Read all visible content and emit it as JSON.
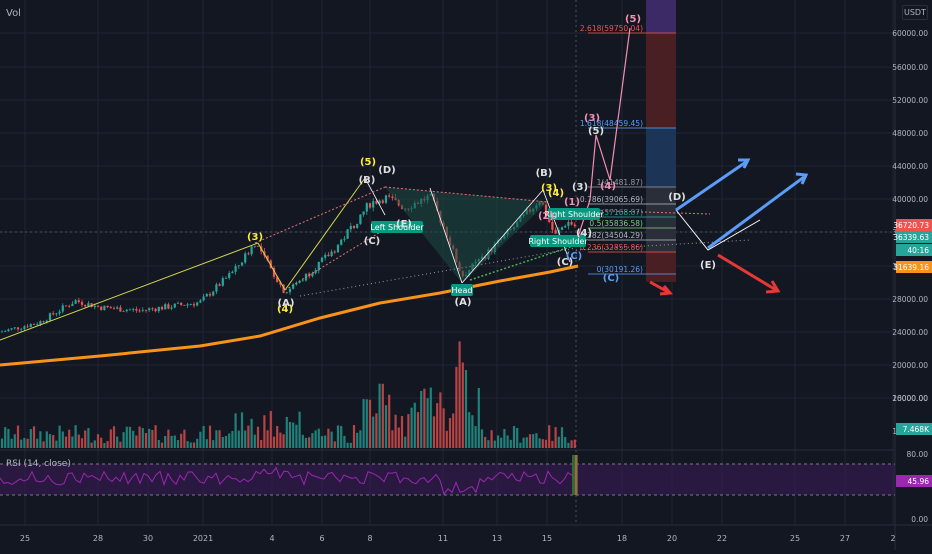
{
  "header": {
    "vol_label": "Vol",
    "currency_label": "USDT"
  },
  "colors": {
    "background": "#131722",
    "grid": "#1f2433",
    "text": "#b2b5be",
    "up": "#26a69a",
    "down": "#ef5350",
    "ma": "#f7931a",
    "rsi_line": "#9c27b0",
    "rsi_band": "#3c1a5a",
    "wave_yellow": "#ffeb3b",
    "wave_pink": "#f48fb1",
    "wave_blue": "#5b9cf6",
    "target_red": "#e53935",
    "label_green": "#089981"
  },
  "chart_data": {
    "type": "candlestick",
    "title": "",
    "price_axis": {
      "scale": "log",
      "range": [
        20000,
        64000
      ],
      "ticks": [
        60000,
        56000,
        52000,
        48000,
        44000,
        40000,
        36000,
        32000,
        28000,
        24000,
        20000,
        16000
      ]
    },
    "volume_axis_ticks": [
      20000.0,
      16000.0
    ],
    "time_axis_ticks": [
      "25",
      "28",
      "30",
      "2021",
      "4",
      "6",
      "8",
      "11",
      "13",
      "15",
      "18",
      "20",
      "22",
      "25",
      "27",
      "2"
    ],
    "price_tick_labels": [
      "60000.00",
      "56000.00",
      "52000.00",
      "48000.00",
      "44000.00",
      "40000.00",
      "36000.00",
      "32000.00",
      "28000.00",
      "24000.00",
      "20000.00",
      "16000.00"
    ],
    "price_badges": [
      {
        "label": "36720.73",
        "color": "#ef5350"
      },
      {
        "label": "36339.63",
        "color": "#26a69a"
      },
      {
        "label": "40:16",
        "color": "#26a69a"
      },
      {
        "label": "31639.16",
        "color": "#f7931a"
      }
    ],
    "volume_badge": {
      "label": "7.468K",
      "color": "#26a69a"
    },
    "rsi": {
      "label": "RSI (14, close)",
      "ticks": [
        "80.00",
        "0.00"
      ],
      "value_badge": "45.96",
      "upper": 70,
      "lower": 30
    },
    "fib_levels": [
      {
        "label": "2.618(59750.04)",
        "color": "#ef5350"
      },
      {
        "label": "1.618(48459.45)",
        "color": "#5b9cf6"
      },
      {
        "label": "1(41481.87)",
        "color": "#9598a1"
      },
      {
        "label": "0.786(39065.69)",
        "color": "#b2b5be"
      },
      {
        "label": "0.618(37168.87)",
        "color": "#26a69a"
      },
      {
        "label": "0.5(35836.58)",
        "color": "#81c784"
      },
      {
        "label": "0.382(34504.29)",
        "color": "#b2b5be"
      },
      {
        "label": "0.236(32855.86)",
        "color": "#ef5350"
      },
      {
        "label": "0(30191.26)",
        "color": "#5b9cf6"
      }
    ],
    "pattern_labels": {
      "left_shoulder": "Left Shoulder",
      "head": "Head",
      "right_shoulder": "Right Shoulder",
      "right_shoulder_upper": "Right Shoulder"
    },
    "wave_labels": {
      "yellow": [
        "(3)",
        "(4)",
        "(5)",
        "(3)",
        "(4)"
      ],
      "white": [
        "(A)",
        "(B)",
        "(C)",
        "(D)",
        "(E)",
        "(A)",
        "(B)",
        "(C)",
        "(D)",
        "(E)"
      ],
      "pink": [
        "(1)",
        "(2)",
        "(3)",
        "(4)",
        "(5)",
        "(3)",
        "(4)",
        "(5)"
      ],
      "blue": [
        "(C)",
        "(C)"
      ]
    }
  }
}
